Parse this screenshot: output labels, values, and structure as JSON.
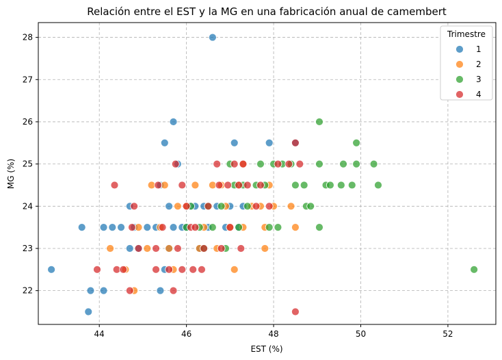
{
  "chart_data": {
    "type": "scatter",
    "title": "Relación entre el EST y la MG en una fabricación anual de camembert",
    "xlabel": "EST (%)",
    "ylabel": "MG (%)",
    "xlim": [
      42.6,
      53.1
    ],
    "ylim": [
      21.2,
      28.35
    ],
    "x_ticks": [
      44,
      46,
      48,
      50,
      52
    ],
    "y_ticks": [
      22,
      23,
      24,
      25,
      26,
      27,
      28
    ],
    "grid": true,
    "legend": {
      "title": "Trimestre",
      "placement": "top-right"
    },
    "series": [
      {
        "name": "1",
        "color": "#1f77b4",
        "points": [
          [
            42.9,
            22.5
          ],
          [
            43.6,
            23.5
          ],
          [
            43.8,
            22.0
          ],
          [
            43.75,
            21.5
          ],
          [
            44.1,
            23.5
          ],
          [
            44.1,
            22.0
          ],
          [
            44.3,
            23.5
          ],
          [
            44.5,
            23.5
          ],
          [
            44.7,
            23.0
          ],
          [
            44.7,
            24.0
          ],
          [
            44.8,
            23.5
          ],
          [
            44.9,
            23.0
          ],
          [
            45.1,
            23.5
          ],
          [
            45.3,
            23.5
          ],
          [
            45.4,
            24.5
          ],
          [
            45.4,
            22.0
          ],
          [
            45.5,
            25.5
          ],
          [
            45.5,
            22.5
          ],
          [
            45.6,
            23.0
          ],
          [
            45.6,
            24.0
          ],
          [
            45.7,
            26.0
          ],
          [
            45.7,
            23.5
          ],
          [
            45.8,
            25.0
          ],
          [
            45.9,
            23.5
          ],
          [
            46.0,
            23.5
          ],
          [
            46.1,
            24.0
          ],
          [
            46.2,
            24.0
          ],
          [
            46.3,
            23.0
          ],
          [
            46.4,
            24.0
          ],
          [
            46.5,
            23.5
          ],
          [
            46.6,
            28.0
          ],
          [
            46.7,
            24.0
          ],
          [
            46.9,
            23.5
          ],
          [
            47.0,
            24.0
          ],
          [
            47.1,
            25.5
          ],
          [
            47.2,
            23.5
          ],
          [
            47.3,
            24.0
          ],
          [
            47.9,
            25.5
          ],
          [
            48.5,
            25.5
          ]
        ]
      },
      {
        "name": "2",
        "color": "#ff7f0e",
        "points": [
          [
            44.25,
            23.0
          ],
          [
            44.6,
            22.5
          ],
          [
            44.8,
            22.0
          ],
          [
            44.9,
            23.5
          ],
          [
            45.1,
            23.0
          ],
          [
            45.2,
            24.5
          ],
          [
            45.4,
            23.5
          ],
          [
            45.5,
            24.5
          ],
          [
            45.6,
            23.0
          ],
          [
            45.7,
            22.5
          ],
          [
            45.8,
            24.0
          ],
          [
            46.0,
            24.0
          ],
          [
            46.2,
            24.5
          ],
          [
            46.3,
            23.0
          ],
          [
            46.4,
            23.5
          ],
          [
            46.6,
            24.5
          ],
          [
            46.7,
            23.0
          ],
          [
            46.8,
            24.5
          ],
          [
            46.9,
            24.0
          ],
          [
            47.0,
            23.5
          ],
          [
            47.1,
            22.5
          ],
          [
            47.2,
            24.5
          ],
          [
            47.3,
            25.0
          ],
          [
            47.3,
            23.5
          ],
          [
            47.5,
            24.0
          ],
          [
            47.7,
            24.0
          ],
          [
            47.8,
            23.0
          ],
          [
            47.8,
            23.5
          ],
          [
            47.9,
            24.5
          ],
          [
            48.0,
            24.0
          ],
          [
            48.4,
            24.0
          ],
          [
            48.5,
            23.5
          ]
        ]
      },
      {
        "name": "3",
        "color": "#2ca02c",
        "points": [
          [
            46.0,
            23.5
          ],
          [
            46.1,
            24.0
          ],
          [
            46.3,
            23.5
          ],
          [
            46.4,
            23.0
          ],
          [
            46.5,
            24.0
          ],
          [
            46.6,
            23.5
          ],
          [
            46.8,
            24.0
          ],
          [
            46.9,
            23.0
          ],
          [
            47.0,
            25.0
          ],
          [
            47.1,
            24.5
          ],
          [
            47.2,
            23.5
          ],
          [
            47.3,
            24.5
          ],
          [
            47.4,
            24.0
          ],
          [
            47.6,
            24.5
          ],
          [
            47.7,
            25.0
          ],
          [
            47.8,
            24.5
          ],
          [
            47.9,
            23.5
          ],
          [
            48.0,
            25.0
          ],
          [
            48.1,
            23.5
          ],
          [
            48.2,
            25.0
          ],
          [
            48.4,
            25.0
          ],
          [
            48.5,
            24.5
          ],
          [
            48.7,
            24.5
          ],
          [
            48.75,
            24.0
          ],
          [
            48.85,
            24.0
          ],
          [
            49.05,
            23.5
          ],
          [
            49.05,
            25.0
          ],
          [
            49.05,
            26.0
          ],
          [
            49.2,
            24.5
          ],
          [
            49.3,
            24.5
          ],
          [
            49.55,
            24.5
          ],
          [
            49.6,
            25.0
          ],
          [
            49.8,
            24.5
          ],
          [
            49.9,
            25.0
          ],
          [
            49.9,
            25.5
          ],
          [
            50.3,
            25.0
          ],
          [
            50.4,
            24.5
          ],
          [
            52.6,
            22.5
          ]
        ]
      },
      {
        "name": "4",
        "color": "#d62728",
        "points": [
          [
            43.95,
            22.5
          ],
          [
            44.35,
            24.5
          ],
          [
            44.4,
            22.5
          ],
          [
            44.55,
            22.5
          ],
          [
            44.7,
            22.0
          ],
          [
            44.75,
            23.5
          ],
          [
            44.8,
            24.0
          ],
          [
            44.9,
            23.0
          ],
          [
            45.3,
            23.0
          ],
          [
            45.3,
            22.5
          ],
          [
            45.35,
            24.5
          ],
          [
            45.45,
            23.5
          ],
          [
            45.6,
            22.5
          ],
          [
            45.7,
            22.0
          ],
          [
            45.75,
            25.0
          ],
          [
            45.8,
            23.0
          ],
          [
            45.9,
            22.5
          ],
          [
            45.9,
            24.5
          ],
          [
            46.0,
            24.0
          ],
          [
            46.1,
            23.5
          ],
          [
            46.15,
            22.5
          ],
          [
            46.2,
            23.5
          ],
          [
            46.35,
            22.5
          ],
          [
            46.4,
            23.0
          ],
          [
            46.5,
            24.0
          ],
          [
            46.7,
            25.0
          ],
          [
            46.75,
            24.5
          ],
          [
            46.8,
            23.0
          ],
          [
            46.95,
            24.5
          ],
          [
            47.0,
            23.5
          ],
          [
            47.1,
            25.0
          ],
          [
            47.2,
            24.5
          ],
          [
            47.25,
            23.0
          ],
          [
            47.3,
            25.0
          ],
          [
            47.4,
            24.5
          ],
          [
            47.6,
            24.0
          ],
          [
            47.7,
            24.5
          ],
          [
            47.9,
            24.0
          ],
          [
            48.1,
            25.0
          ],
          [
            48.35,
            25.0
          ],
          [
            48.5,
            25.5
          ],
          [
            48.5,
            21.5
          ],
          [
            48.6,
            25.0
          ]
        ]
      }
    ]
  }
}
